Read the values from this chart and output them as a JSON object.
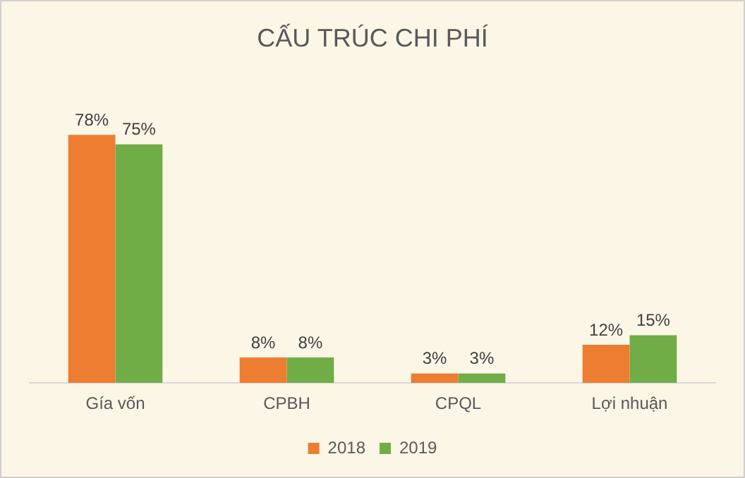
{
  "chart_data": {
    "type": "bar",
    "title": "CẤU TRÚC CHI PHÍ",
    "categories": [
      "Gía vốn",
      "CPBH",
      "CPQL",
      "Lợi nhuận"
    ],
    "series": [
      {
        "name": "2018",
        "color": "#ed7d31",
        "values": [
          78,
          8,
          3,
          12
        ],
        "value_labels": [
          "78%",
          "8%",
          "3%",
          "12%"
        ]
      },
      {
        "name": "2019",
        "color": "#70ad47",
        "values": [
          75,
          8,
          3,
          15
        ],
        "value_labels": [
          "75%",
          "8%",
          "3%",
          "15%"
        ]
      }
    ],
    "legend": "bottom",
    "tick_labels": "x",
    "grid": false
  }
}
